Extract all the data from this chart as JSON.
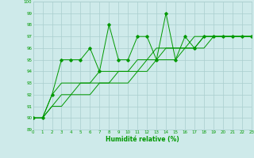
{
  "xlabel": "Humidité relative (%)",
  "background_color": "#ceeaea",
  "grid_color": "#aacece",
  "line_color": "#009900",
  "xmin": 0,
  "xmax": 23,
  "ymin": 89,
  "ymax": 100,
  "yticks": [
    89,
    90,
    91,
    92,
    93,
    94,
    95,
    96,
    97,
    98,
    99,
    100
  ],
  "xticks": [
    0,
    1,
    2,
    3,
    4,
    5,
    6,
    7,
    8,
    9,
    10,
    11,
    12,
    13,
    14,
    15,
    16,
    17,
    18,
    19,
    20,
    21,
    22,
    23
  ],
  "line1_x": [
    0,
    1,
    2,
    3,
    4,
    5,
    6,
    7,
    8,
    9,
    10,
    11,
    12,
    13,
    14,
    15,
    16,
    17,
    18,
    19,
    20,
    21,
    22,
    23
  ],
  "line1_y": [
    90,
    90,
    92,
    95,
    95,
    95,
    96,
    94,
    98,
    95,
    95,
    97,
    97,
    95,
    99,
    95,
    97,
    96,
    97,
    97,
    97,
    97,
    97,
    97
  ],
  "line2_x": [
    0,
    1,
    2,
    3,
    4,
    5,
    6,
    7,
    8,
    9,
    10,
    11,
    12,
    13,
    14,
    15,
    16,
    17,
    18,
    19,
    20,
    21,
    22,
    23
  ],
  "line2_y": [
    90,
    90,
    92,
    93,
    93,
    93,
    93,
    94,
    94,
    94,
    94,
    95,
    95,
    96,
    96,
    96,
    96,
    97,
    97,
    97,
    97,
    97,
    97,
    97
  ],
  "line3_x": [
    0,
    1,
    2,
    3,
    4,
    5,
    6,
    7,
    8,
    9,
    10,
    11,
    12,
    13,
    14,
    15,
    16,
    17,
    18,
    19,
    20,
    21,
    22,
    23
  ],
  "line3_y": [
    90,
    90,
    91,
    92,
    92,
    93,
    93,
    93,
    93,
    94,
    94,
    94,
    95,
    95,
    96,
    96,
    96,
    96,
    97,
    97,
    97,
    97,
    97,
    97
  ],
  "line4_x": [
    0,
    1,
    2,
    3,
    4,
    5,
    6,
    7,
    8,
    9,
    10,
    11,
    12,
    13,
    14,
    15,
    16,
    17,
    18,
    19,
    20,
    21,
    22,
    23
  ],
  "line4_y": [
    90,
    90,
    91,
    91,
    92,
    92,
    92,
    93,
    93,
    93,
    93,
    94,
    94,
    95,
    95,
    95,
    96,
    96,
    96,
    97,
    97,
    97,
    97,
    97
  ]
}
